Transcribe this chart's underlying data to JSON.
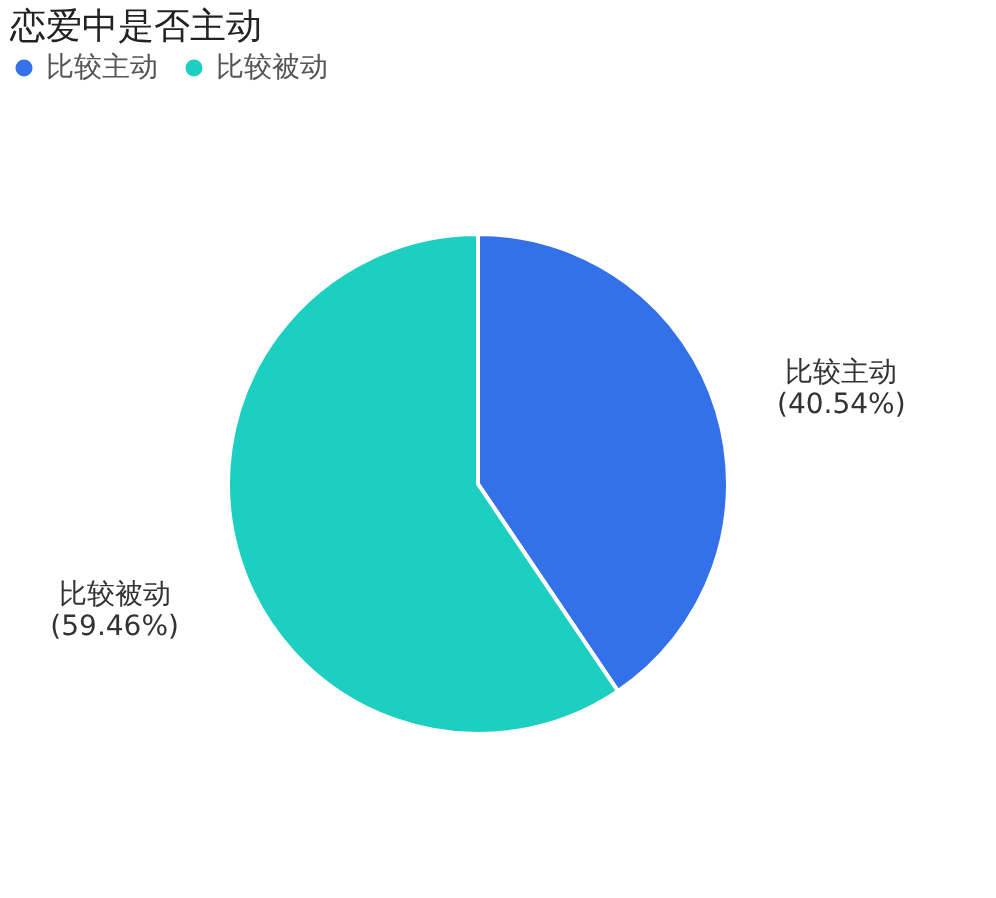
{
  "chart_data": {
    "type": "pie",
    "title": "恋爱中是否主动",
    "categories": [
      "比较主动",
      "比较被动"
    ],
    "values": [
      40.54,
      59.46
    ],
    "value_labels": [
      "(40.54%)",
      "(59.46%)"
    ],
    "colors": [
      "#3471e8",
      "#1dcfc1"
    ],
    "legend": "top left"
  }
}
